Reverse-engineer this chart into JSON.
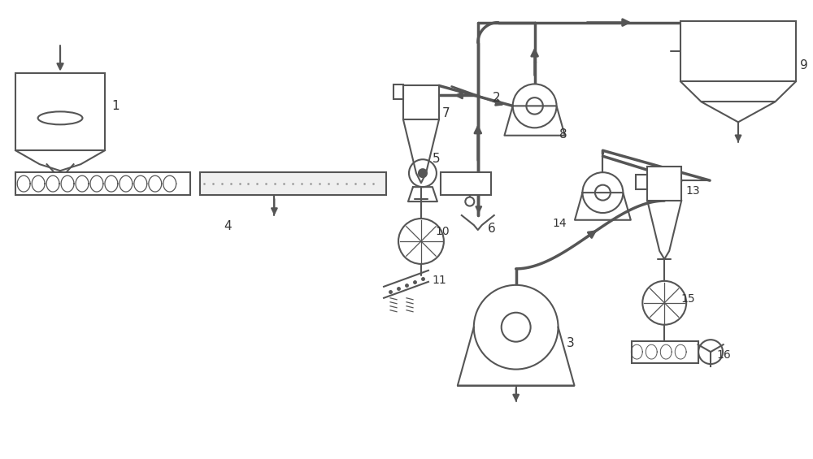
{
  "bg_color": "#ffffff",
  "lc": "#555555",
  "lw": 1.5,
  "pw": 2.5,
  "fig_w": 10.0,
  "fig_h": 5.65,
  "xlim": [
    0,
    10
  ],
  "ylim": [
    0,
    5.65
  ]
}
